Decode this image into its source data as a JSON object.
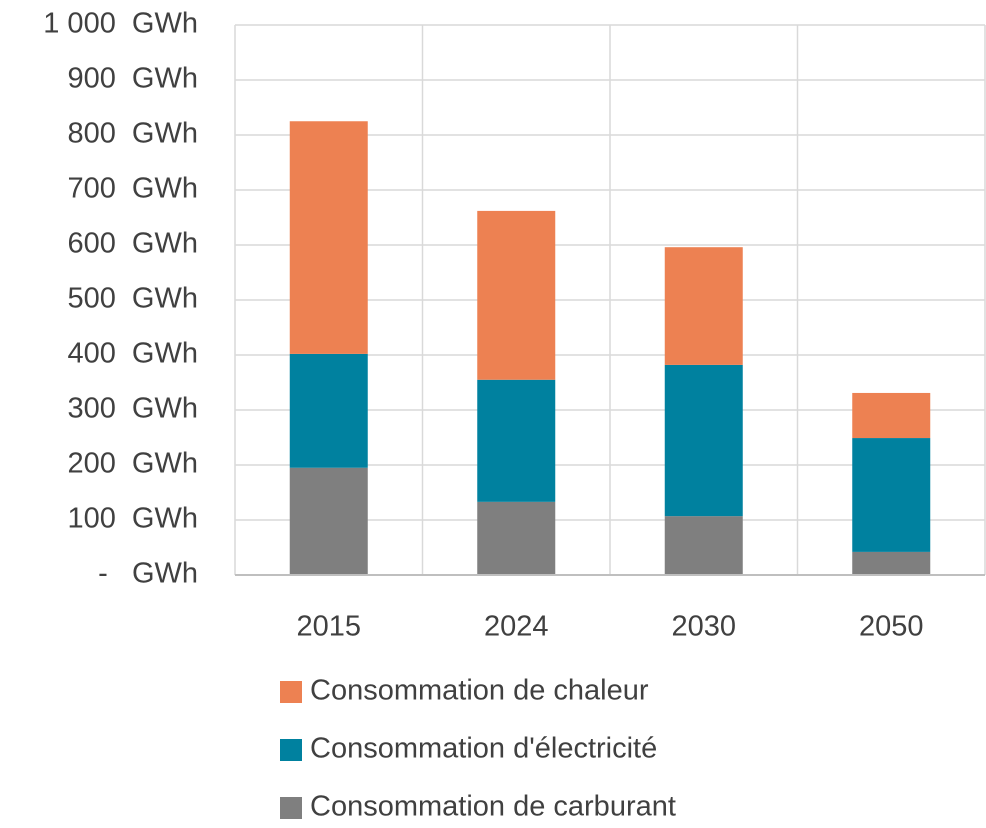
{
  "chart_data": {
    "type": "stacked_bar",
    "categories": [
      "2015",
      "2024",
      "2030",
      "2050"
    ],
    "series": [
      {
        "name": "Consommation de carburant",
        "color": "#7f7f7f",
        "values": [
          195,
          133,
          107,
          42
        ]
      },
      {
        "name": "Consommation d'électricité",
        "color": "#00819f",
        "values": [
          207,
          222,
          275,
          207
        ]
      },
      {
        "name": "Consommation de chaleur",
        "color": "#ed8152",
        "values": [
          423,
          307,
          214,
          82
        ]
      }
    ],
    "ylim": [
      0,
      1000
    ],
    "yticks": [
      {
        "value": 0,
        "label": "-   GWh"
      },
      {
        "value": 100,
        "label": "100  GWh"
      },
      {
        "value": 200,
        "label": "200  GWh"
      },
      {
        "value": 300,
        "label": "300  GWh"
      },
      {
        "value": 400,
        "label": "400  GWh"
      },
      {
        "value": 500,
        "label": "500  GWh"
      },
      {
        "value": 600,
        "label": "600  GWh"
      },
      {
        "value": 700,
        "label": "700  GWh"
      },
      {
        "value": 800,
        "label": "800  GWh"
      },
      {
        "value": 900,
        "label": "900  GWh"
      },
      {
        "value": 1000,
        "label": "1 000  GWh"
      }
    ],
    "grid": true
  }
}
